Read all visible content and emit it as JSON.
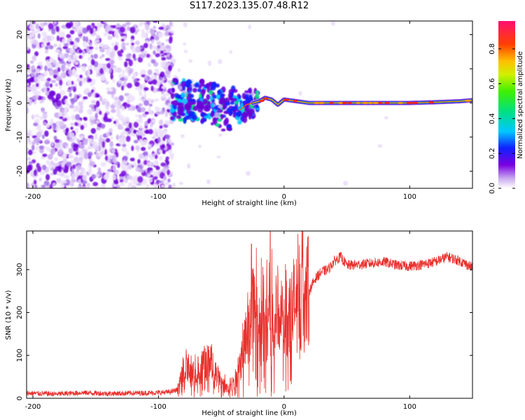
{
  "title": "S117.2023.135.07.48.R12",
  "spectrogram": {
    "xlabel": "Height of straight line (km)",
    "ylabel": "Frequency (Hz)",
    "xlim": [
      -205,
      150
    ],
    "ylim": [
      -25,
      24
    ],
    "xticks": [
      -200,
      -100,
      0,
      100
    ],
    "yticks": [
      -20,
      -10,
      0,
      10,
      20
    ],
    "colorbar": {
      "label": "Normalized spectral amplitude",
      "ticks": [
        0.0,
        0.2,
        0.4,
        0.6,
        0.8
      ],
      "range": [
        0,
        0.96
      ]
    }
  },
  "chart_data": [
    {
      "type": "heatmap",
      "description_of_signal": "spectral ridge",
      "xlabel": "Height of straight line (km)",
      "ylabel": "Frequency (Hz)",
      "xlim": [
        -205,
        150
      ],
      "ylim": [
        -25,
        24
      ],
      "noise_region_x": [
        -205,
        -92
      ],
      "ridge": {
        "x": [
          -90,
          -80,
          -70,
          -60,
          -50,
          -45,
          -40,
          -35,
          -30,
          -25,
          -20,
          -15,
          -10,
          -5,
          0,
          10,
          20,
          40,
          60,
          80,
          100,
          120,
          140,
          150
        ],
        "y": [
          1.5,
          0.5,
          1.0,
          0.0,
          -1.0,
          -4.0,
          0.0,
          -2.0,
          -0.5,
          0.0,
          0.5,
          1.5,
          1.0,
          -0.5,
          1.0,
          0.5,
          0.0,
          0.0,
          0.0,
          0.0,
          0.0,
          0.2,
          0.5,
          0.8
        ]
      }
    },
    {
      "type": "line",
      "xlabel": "Height of straight line (km)",
      "ylabel": "SNR (10 * v/v)",
      "xlim": [
        -205,
        150
      ],
      "ylim": [
        0,
        390
      ],
      "xticks": [
        -200,
        -100,
        0,
        100
      ],
      "yticks": [
        0,
        100,
        200,
        300
      ],
      "color": "#e8302c",
      "series": [
        {
          "x": [
            -205,
            -180,
            -160,
            -140,
            -120,
            -100,
            -90,
            -85,
            -80,
            -75,
            -70,
            -65,
            -60,
            -55,
            -50,
            -45,
            -40,
            -35,
            -30,
            -25,
            -20,
            -15,
            -10,
            -5,
            0,
            5,
            10,
            15,
            20,
            25,
            30,
            35,
            40,
            45,
            50,
            60,
            70,
            80,
            90,
            100,
            110,
            120,
            130,
            140,
            150
          ],
          "values": [
            12,
            10,
            13,
            11,
            12,
            13,
            15,
            20,
            60,
            70,
            50,
            80,
            90,
            60,
            40,
            20,
            30,
            80,
            150,
            220,
            170,
            160,
            200,
            180,
            190,
            200,
            230,
            230,
            250,
            280,
            295,
            300,
            320,
            330,
            310,
            312,
            315,
            318,
            310,
            308,
            312,
            318,
            330,
            320,
            305
          ]
        }
      ],
      "spikes": [
        {
          "x": -26,
          "y": 360
        },
        {
          "x": -11,
          "y": 390
        }
      ]
    }
  ]
}
